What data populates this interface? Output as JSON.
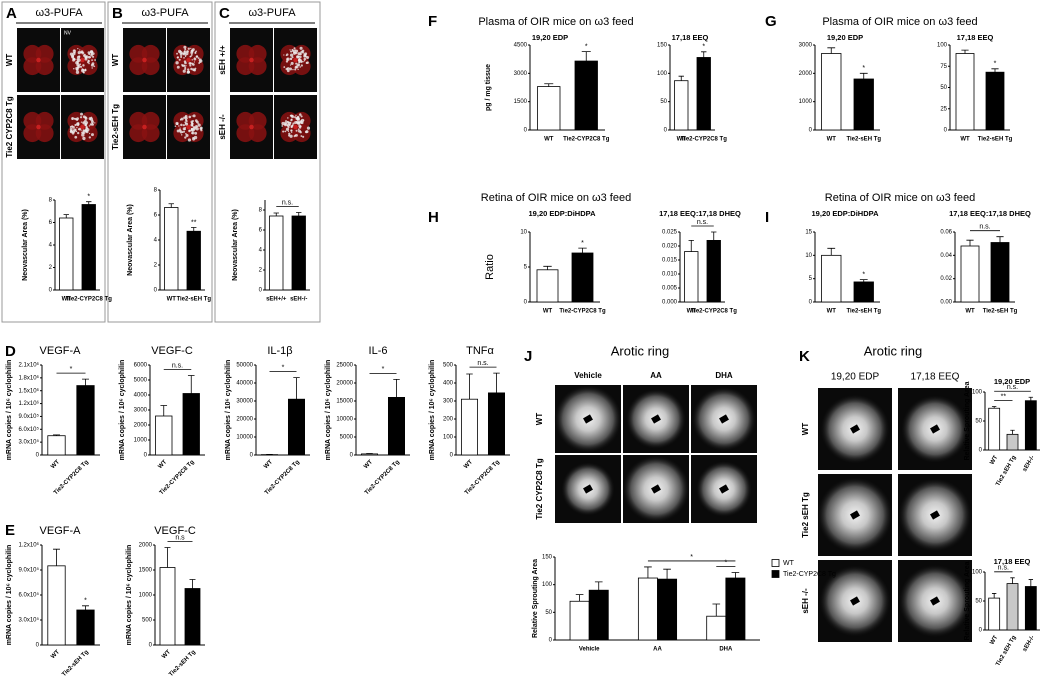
{
  "figure": {
    "letters": [
      "A",
      "B",
      "C",
      "D",
      "E",
      "F",
      "G",
      "H",
      "I",
      "J",
      "K"
    ],
    "retina_panels": [
      {
        "header": "ω3-PUFA",
        "rows": [
          "WT",
          "Tie2 CYP2C8 Tg"
        ]
      },
      {
        "header": "ω3-PUFA",
        "rows": [
          "WT",
          "Tie2-sEH Tg"
        ]
      },
      {
        "header": "ω3-PUFA",
        "rows": [
          "sEH +/+",
          "sEH -/-"
        ]
      }
    ],
    "nv": "NV",
    "headings": [
      "Plasma of OIR mice on ω3 feed",
      "Plasma of OIR mice on ω3 feed",
      "Retina of OIR mice on ω3 feed",
      "Retina of OIR mice on ω3 feed"
    ],
    "ring_j": {
      "header": "Arotic ring",
      "columns": [
        "Vehicle",
        "AA",
        "DHA"
      ],
      "rows": [
        "WT",
        "Tie2 CYP2C8 Tg"
      ]
    },
    "ring_k": {
      "header": "Arotic ring",
      "columns": [
        "19,20 EDP",
        "17,18 EEQ"
      ],
      "column_colors": [
        "#2a9d2a",
        "#1fa8d8"
      ],
      "rows": [
        "WT",
        "Tie2 sEH Tg",
        "sEH -/-"
      ]
    }
  },
  "chart_data": [
    {
      "type": "bar",
      "ylabel": "Neovascular Area (%)",
      "categories": [
        "WT",
        "Tie2-CYP2C8 Tg"
      ],
      "values": [
        6.4,
        7.6
      ],
      "errors": [
        0.3,
        0.25
      ],
      "colors": [
        "#ffffff",
        "#000000"
      ],
      "ylim": [
        0,
        8
      ],
      "yticks": [
        0,
        2,
        4,
        6,
        8
      ],
      "annotations": [
        {
          "text": "*",
          "category": "Tie2-CYP2C8 Tg"
        }
      ]
    },
    {
      "type": "bar",
      "ylabel": "Neovascular Area (%)",
      "categories": [
        "WT",
        "Tie2-sEH Tg"
      ],
      "values": [
        6.6,
        4.7
      ],
      "errors": [
        0.3,
        0.3
      ],
      "colors": [
        "#ffffff",
        "#000000"
      ],
      "ylim": [
        0,
        8
      ],
      "yticks": [
        0,
        2,
        4,
        6,
        8
      ],
      "annotations": [
        {
          "text": "**",
          "category": "Tie2-sEH Tg"
        }
      ]
    },
    {
      "type": "bar",
      "ylabel": "Neovascular Area (%)",
      "categories": [
        "sEH+/+",
        "sEH-/-"
      ],
      "values": [
        7.4,
        7.4
      ],
      "errors": [
        0.3,
        0.35
      ],
      "colors": [
        "#ffffff",
        "#000000"
      ],
      "ylim": [
        0,
        9
      ],
      "yticks": [
        0,
        2,
        4,
        6,
        8
      ],
      "brackets": [
        {
          "text": "n.s.",
          "between": [
            "sEH+/+",
            "sEH-/-"
          ]
        }
      ]
    },
    {
      "type": "bar",
      "title": "19,20 EDP",
      "title_color": "#2a9d2a",
      "ylabel": "pg / mg tissue",
      "categories": [
        "WT",
        "Tie2-CYP2C8 Tg"
      ],
      "values": [
        2300,
        3650
      ],
      "errors": [
        150,
        500
      ],
      "colors": [
        "#ffffff",
        "#000000"
      ],
      "ylim": [
        0,
        4500
      ],
      "yticks": [
        0,
        1500,
        3000,
        4500
      ],
      "annotations": [
        {
          "text": "*",
          "category": "Tie2-CYP2C8 Tg"
        }
      ]
    },
    {
      "type": "bar",
      "title": "17,18 EEQ",
      "title_color": "#1fa8d8",
      "categories": [
        "WT",
        "Tie2-CYP2C8 Tg"
      ],
      "values": [
        87,
        128
      ],
      "errors": [
        8,
        10
      ],
      "colors": [
        "#ffffff",
        "#000000"
      ],
      "ylim": [
        0,
        150
      ],
      "yticks": [
        0,
        50,
        100,
        150
      ],
      "annotations": [
        {
          "text": "*",
          "category": "Tie2-CYP2C8 Tg"
        }
      ]
    },
    {
      "type": "bar",
      "title": "19,20 EDP",
      "title_color": "#2a9d2a",
      "categories": [
        "WT",
        "Tie2-sEH Tg"
      ],
      "values": [
        2700,
        1800
      ],
      "errors": [
        200,
        200
      ],
      "colors": [
        "#ffffff",
        "#000000"
      ],
      "ylim": [
        0,
        3000
      ],
      "yticks": [
        0,
        1000,
        2000,
        3000
      ],
      "annotations": [
        {
          "text": "*",
          "category": "Tie2-sEH Tg"
        }
      ]
    },
    {
      "type": "bar",
      "title": "17,18 EEQ",
      "title_color": "#1fa8d8",
      "categories": [
        "WT",
        "Tie2-sEH Tg"
      ],
      "values": [
        90,
        68
      ],
      "errors": [
        4,
        4
      ],
      "colors": [
        "#ffffff",
        "#000000"
      ],
      "ylim": [
        0,
        100
      ],
      "yticks": [
        0,
        25,
        50,
        75,
        100
      ],
      "annotations": [
        {
          "text": "*",
          "category": "Tie2-sEH Tg"
        }
      ]
    },
    {
      "type": "bar",
      "title": "19,20 EDP:DiHDPA",
      "title_color": "#2a9d2a",
      "ylabel": "Ratio",
      "categories": [
        "WT",
        "Tie2-CYP2C8 Tg"
      ],
      "values": [
        4.6,
        7.0
      ],
      "errors": [
        0.5,
        0.7
      ],
      "colors": [
        "#ffffff",
        "#000000"
      ],
      "ylim": [
        0,
        10
      ],
      "yticks": [
        0,
        5,
        10
      ],
      "annotations": [
        {
          "text": "*",
          "category": "Tie2-CYP2C8 Tg"
        }
      ]
    },
    {
      "type": "bar",
      "title": "17,18 EEQ:17,18 DHEQ",
      "title_color": "#1fa8d8",
      "categories": [
        "WT",
        "Tie2-CYP2C8 Tg"
      ],
      "values": [
        0.018,
        0.022
      ],
      "errors": [
        0.004,
        0.003
      ],
      "colors": [
        "#ffffff",
        "#000000"
      ],
      "ylim": [
        0,
        0.025
      ],
      "yticks": [
        {
          "value": 0,
          "label": "0.000"
        },
        {
          "value": 0.005,
          "label": "0.005"
        },
        {
          "value": 0.01,
          "label": "0.010"
        },
        {
          "value": 0.015,
          "label": "0.015"
        },
        {
          "value": 0.02,
          "label": "0.020"
        },
        {
          "value": 0.025,
          "label": "0.025"
        }
      ],
      "brackets": [
        {
          "text": "n.s.",
          "between": [
            "WT",
            "Tie2-CYP2C8 Tg"
          ]
        }
      ]
    },
    {
      "type": "bar",
      "title": "19,20 EDP:DiHDPA",
      "title_color": "#2a9d2a",
      "categories": [
        "WT",
        "Tie2-sEH Tg"
      ],
      "values": [
        10,
        4.3
      ],
      "errors": [
        1.5,
        0.5
      ],
      "colors": [
        "#ffffff",
        "#000000"
      ],
      "ylim": [
        0,
        15
      ],
      "yticks": [
        0,
        5,
        10,
        15
      ],
      "annotations": [
        {
          "text": "*",
          "category": "Tie2-sEH Tg"
        }
      ]
    },
    {
      "type": "bar",
      "title": "17,18 EEQ:17,18 DHEQ",
      "title_color": "#1fa8d8",
      "categories": [
        "WT",
        "Tie2-sEH Tg"
      ],
      "values": [
        0.048,
        0.051
      ],
      "errors": [
        0.005,
        0.005
      ],
      "colors": [
        "#ffffff",
        "#000000"
      ],
      "ylim": [
        0,
        0.06
      ],
      "yticks": [
        {
          "value": 0,
          "label": "0.00"
        },
        {
          "value": 0.02,
          "label": "0.02"
        },
        {
          "value": 0.04,
          "label": "0.04"
        },
        {
          "value": 0.06,
          "label": "0.06"
        }
      ],
      "brackets": [
        {
          "text": "n.s.",
          "between": [
            "WT",
            "Tie2-sEH Tg"
          ]
        }
      ]
    },
    {
      "type": "bar",
      "title": "VEGF-A",
      "ylabel": "mRNA copies / 10⁶ cyclophilin",
      "categories": [
        "WT",
        "Tie2-CYP2C8 Tg"
      ],
      "values": [
        450000,
        1620000
      ],
      "errors": [
        20000,
        150000
      ],
      "colors": [
        "#ffffff",
        "#000000"
      ],
      "ylim": [
        0,
        2100000
      ],
      "yticks": [
        0,
        {
          "value": 300000,
          "label": "3.0x10⁵"
        },
        {
          "value": 600000,
          "label": "6.0x10⁵"
        },
        {
          "value": 900000,
          "label": "9.0x10⁵"
        },
        {
          "value": 1200000,
          "label": "1.2x10⁶"
        },
        {
          "value": 1500000,
          "label": "1.5x10⁶"
        },
        {
          "value": 1800000,
          "label": "1.8x10⁶"
        },
        {
          "value": 2100000,
          "label": "2.1x10⁶"
        }
      ],
      "brackets": [
        {
          "text": "*",
          "between": [
            "WT",
            "Tie2-CYP2C8 Tg"
          ]
        }
      ]
    },
    {
      "type": "bar",
      "title": "VEGF-C",
      "ylabel": "mRNA copies / 10⁶ cyclophilin",
      "categories": [
        "WT",
        "Tie2-CYP2C8 Tg"
      ],
      "values": [
        2600,
        4100
      ],
      "errors": [
        700,
        1200
      ],
      "colors": [
        "#ffffff",
        "#000000"
      ],
      "ylim": [
        0,
        6000
      ],
      "yticks": [
        0,
        1000,
        2000,
        3000,
        4000,
        5000,
        6000
      ],
      "brackets": [
        {
          "text": "n.s.",
          "between": [
            "WT",
            "Tie2-CYP2C8 Tg"
          ]
        }
      ]
    },
    {
      "type": "bar",
      "title": "IL-1β",
      "ylabel": "mRNA copies / 10⁶ cyclophilin",
      "categories": [
        "WT",
        "Tie2-CYP2C8 Tg"
      ],
      "values": [
        200,
        31000
      ],
      "errors": [
        100,
        12000
      ],
      "colors": [
        "#ffffff",
        "#000000"
      ],
      "ylim": [
        0,
        50000
      ],
      "yticks": [
        0,
        10000,
        20000,
        30000,
        40000,
        50000
      ],
      "brackets": [
        {
          "text": "*",
          "between": [
            "WT",
            "Tie2-CYP2C8 Tg"
          ]
        }
      ]
    },
    {
      "type": "bar",
      "title": "IL-6",
      "ylabel": "mRNA copies / 10⁶ cyclophilin",
      "categories": [
        "WT",
        "Tie2-CYP2C8 Tg"
      ],
      "values": [
        300,
        16000
      ],
      "errors": [
        100,
        5000
      ],
      "colors": [
        "#ffffff",
        "#000000"
      ],
      "ylim": [
        0,
        25000
      ],
      "yticks": [
        0,
        5000,
        10000,
        15000,
        20000,
        25000
      ],
      "brackets": [
        {
          "text": "*",
          "between": [
            "WT",
            "Tie2-CYP2C8 Tg"
          ]
        }
      ]
    },
    {
      "type": "bar",
      "title": "TNFα",
      "ylabel": "mRNA copies / 10⁶ cyclophilin",
      "categories": [
        "WT",
        "Tie2-CYP2C8 Tg"
      ],
      "values": [
        310,
        345
      ],
      "errors": [
        140,
        110
      ],
      "colors": [
        "#ffffff",
        "#000000"
      ],
      "ylim": [
        0,
        500
      ],
      "yticks": [
        0,
        100,
        200,
        300,
        400,
        500
      ],
      "brackets": [
        {
          "text": "n.s.",
          "between": [
            "WT",
            "Tie2-CYP2C8 Tg"
          ]
        }
      ]
    },
    {
      "type": "bar",
      "title": "VEGF-A",
      "ylabel": "mRNA copies / 10⁶ cyclophilin",
      "categories": [
        "WT",
        "Tie2-sEH Tg"
      ],
      "values": [
        950000,
        420000
      ],
      "errors": [
        200000,
        50000
      ],
      "colors": [
        "#ffffff",
        "#000000"
      ],
      "ylim": [
        0,
        1200000
      ],
      "yticks": [
        0,
        {
          "value": 300000,
          "label": "3.0x10⁵"
        },
        {
          "value": 600000,
          "label": "6.0x10⁵"
        },
        {
          "value": 900000,
          "label": "9.0x10⁵"
        },
        {
          "value": 1200000,
          "label": "1.2x10⁶"
        }
      ],
      "annotations": [
        {
          "text": "*",
          "category": "Tie2-sEH Tg"
        }
      ]
    },
    {
      "type": "bar",
      "title": "VEGF-C",
      "ylabel": "mRNA copies / 10⁶ cyclophilin",
      "categories": [
        "WT",
        "Tie2-sEH Tg"
      ],
      "values": [
        1550,
        1130
      ],
      "errors": [
        400,
        180
      ],
      "colors": [
        "#ffffff",
        "#000000"
      ],
      "ylim": [
        0,
        2000
      ],
      "yticks": [
        0,
        500,
        1000,
        1500,
        2000
      ],
      "brackets": [
        {
          "text": "n.s",
          "between": [
            "WT",
            "Tie2-sEH Tg"
          ]
        }
      ]
    },
    {
      "type": "grouped_bar",
      "ylabel": "Relative Sprouting Area",
      "categories": [
        "Vehicle",
        "AA",
        "DHA"
      ],
      "series": [
        {
          "name": "WT",
          "color": "#ffffff",
          "values": [
            70,
            112,
            43
          ],
          "errors": [
            12,
            20,
            22
          ]
        },
        {
          "name": "Tie2-CYP2C8 Tg",
          "color": "#000000",
          "values": [
            90,
            110,
            112
          ],
          "errors": [
            15,
            18,
            10
          ]
        }
      ],
      "ylim": [
        0,
        150
      ],
      "yticks": [
        0,
        50,
        100,
        150
      ],
      "legend": "right",
      "brackets": [
        {
          "text": "*",
          "between": [
            [
              "AA",
              "WT"
            ],
            [
              "DHA",
              "Tie2-CYP2C8 Tg"
            ]
          ]
        },
        {
          "text": "*",
          "between": [
            [
              "DHA",
              "WT"
            ],
            [
              "DHA",
              "Tie2-CYP2C8 Tg"
            ]
          ]
        }
      ]
    },
    {
      "type": "bar",
      "title": "19,20 EDP",
      "title_color": "#2a9d2a",
      "ylabel": "Relative Sprouting Area",
      "categories": [
        "WT",
        "Tie2 sEH Tg",
        "sEH-/-"
      ],
      "values": [
        72,
        27,
        85
      ],
      "errors": [
        3,
        7,
        6
      ],
      "colors": [
        "#ffffff",
        "#c8c8c8",
        "#000000"
      ],
      "ylim": [
        0,
        100
      ],
      "yticks": [
        0,
        50,
        100
      ],
      "brackets": [
        {
          "text": "**",
          "between": [
            "WT",
            "Tie2 sEH Tg"
          ]
        },
        {
          "text": "n.s.",
          "between": [
            "WT",
            "sEH-/-"
          ]
        }
      ]
    },
    {
      "type": "bar",
      "title": "17,18 EEQ",
      "title_color": "#1fa8d8",
      "ylabel": "Relative Sprouting Area",
      "categories": [
        "WT",
        "Tie2 sEH Tg",
        "sEH-/-"
      ],
      "values": [
        55,
        80,
        75
      ],
      "errors": [
        8,
        10,
        12
      ],
      "colors": [
        "#ffffff",
        "#c8c8c8",
        "#000000"
      ],
      "ylim": [
        0,
        100
      ],
      "yticks": [
        0,
        50,
        100
      ],
      "brackets": [
        {
          "text": "n.s.",
          "between": [
            "WT",
            "Tie2 sEH Tg"
          ]
        }
      ]
    }
  ]
}
